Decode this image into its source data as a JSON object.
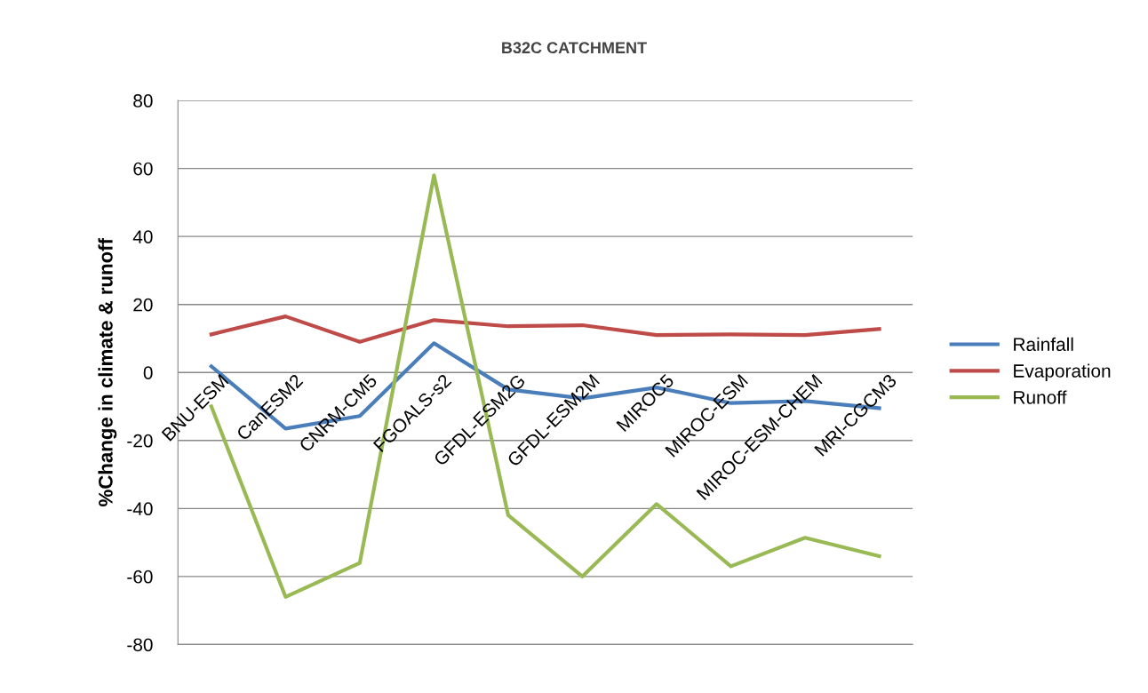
{
  "chart_data": {
    "type": "line",
    "title": "B32C CATCHMENT",
    "ylabel": "%Change in climate & runoff",
    "categories": [
      "BNU-ESM",
      "CanESM2",
      "CNRM-CM5",
      "FGOALS-s2",
      "GFDL-ESM2G",
      "GFDL-ESM2M",
      "MIROC5",
      "MIROC-ESM",
      "MIROC-ESM-CHEM",
      "MRI-CGCM3"
    ],
    "series": [
      {
        "name": "Rainfall",
        "color": "#4a7ebb",
        "values": [
          1.8,
          -16.5,
          -12.8,
          8.6,
          -5,
          -7.6,
          -4.4,
          -9,
          -8.4,
          -10.5
        ]
      },
      {
        "name": "Evaporation",
        "color": "#be4b48",
        "values": [
          11.2,
          16.5,
          9,
          15.4,
          13.6,
          13.9,
          11,
          11.2,
          11,
          12.8
        ]
      },
      {
        "name": "Runoff",
        "color": "#98b954",
        "values": [
          -10,
          -66,
          -56,
          58,
          -42,
          -60,
          -38.7,
          -57,
          -48.6,
          -54
        ]
      }
    ],
    "ylim": [
      -80,
      80
    ],
    "yticks": [
      -80,
      -60,
      -40,
      -20,
      0,
      20,
      40,
      60,
      80
    ],
    "grid": "y",
    "legend": "right",
    "marker": "none",
    "line_style": "solid"
  }
}
